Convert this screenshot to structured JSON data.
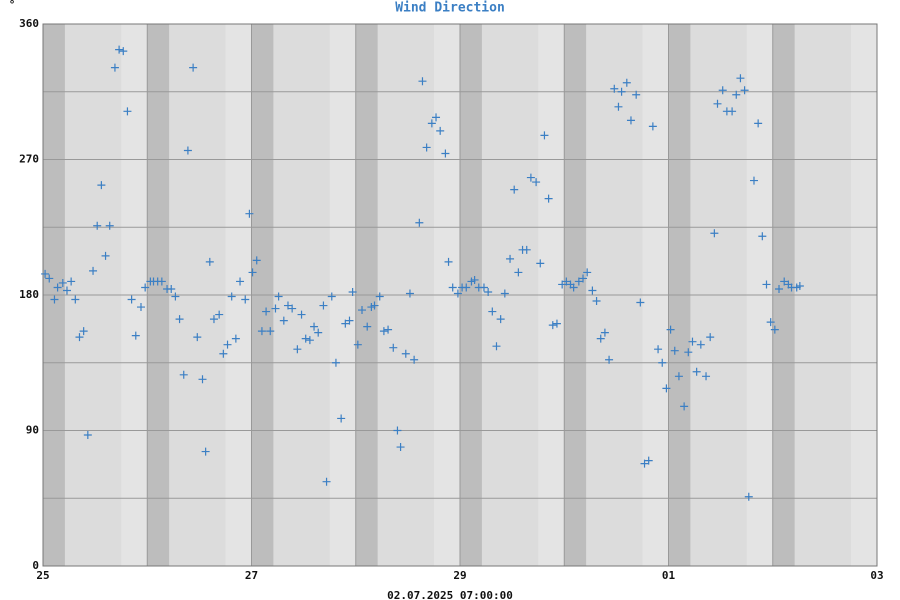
{
  "chart_data": {
    "type": "scatter",
    "title": "Wind Direction",
    "y_label": "°",
    "x_label": "02.07.2025 07:00:00",
    "color": "#3b7fc4",
    "xlim": [
      0,
      8
    ],
    "xticks": [
      {
        "value": 0,
        "label": "25"
      },
      {
        "value": 2,
        "label": "27"
      },
      {
        "value": 4,
        "label": "29"
      },
      {
        "value": 6,
        "label": "01"
      },
      {
        "value": 8,
        "label": "03"
      }
    ],
    "ylim": [
      0,
      360
    ],
    "yticks": [
      0,
      90,
      180,
      270,
      360
    ],
    "grid": true,
    "x": [
      0.02,
      0.06,
      0.11,
      0.14,
      0.19,
      0.23,
      0.27,
      0.31,
      0.35,
      0.39,
      0.43,
      0.48,
      0.52,
      0.56,
      0.6,
      0.64,
      0.69,
      0.73,
      0.77,
      0.81,
      0.85,
      0.89,
      0.94,
      0.98,
      1.03,
      1.06,
      1.1,
      1.14,
      1.19,
      1.23,
      1.27,
      1.31,
      1.35,
      1.39,
      1.44,
      1.48,
      1.53,
      1.56,
      1.6,
      1.64,
      1.69,
      1.73,
      1.77,
      1.81,
      1.85,
      1.89,
      1.94,
      1.98,
      2.01,
      2.05,
      2.1,
      2.14,
      2.18,
      2.23,
      2.26,
      2.31,
      2.35,
      2.39,
      2.44,
      2.48,
      2.52,
      2.56,
      2.6,
      2.64,
      2.69,
      2.72,
      2.77,
      2.81,
      2.86,
      2.9,
      2.94,
      2.97,
      3.02,
      3.06,
      3.11,
      3.15,
      3.18,
      3.23,
      3.27,
      3.31,
      3.36,
      3.4,
      3.43,
      3.48,
      3.52,
      3.56,
      3.61,
      3.64,
      3.68,
      3.73,
      3.77,
      3.81,
      3.86,
      3.89,
      3.93,
      3.98,
      4.02,
      4.06,
      4.11,
      4.14,
      4.18,
      4.23,
      4.27,
      4.31,
      4.35,
      4.39,
      4.43,
      4.48,
      4.52,
      4.56,
      4.6,
      4.64,
      4.68,
      4.73,
      4.77,
      4.81,
      4.85,
      4.89,
      4.93,
      4.98,
      5.02,
      5.06,
      5.09,
      5.14,
      5.18,
      5.22,
      5.27,
      5.31,
      5.35,
      5.39,
      5.43,
      5.48,
      5.52,
      5.55,
      5.6,
      5.64,
      5.69,
      5.73,
      5.77,
      5.81,
      5.85,
      5.9,
      5.94,
      5.98,
      6.02,
      6.06,
      6.1,
      6.15,
      6.19,
      6.23,
      6.27,
      6.31,
      6.36,
      6.4,
      6.44,
      6.47,
      6.52,
      6.56,
      6.61,
      6.65,
      6.69,
      6.73,
      6.77,
      6.82,
      6.86,
      6.9,
      6.94,
      6.98,
      7.02,
      7.06,
      7.11,
      7.15,
      7.18,
      7.23,
      7.26
    ],
    "values": [
      194,
      191,
      177,
      185,
      188,
      183,
      189,
      177,
      152,
      156,
      87,
      196,
      226,
      253,
      206,
      226,
      331,
      343,
      342,
      302,
      177,
      153,
      172,
      185,
      189,
      189,
      189,
      189,
      184,
      184,
      179,
      164,
      127,
      276,
      331,
      152,
      124,
      76,
      202,
      164,
      167,
      141,
      147,
      179,
      151,
      189,
      177,
      234,
      195,
      203,
      156,
      169,
      156,
      171,
      179,
      163,
      173,
      171,
      144,
      167,
      151,
      150,
      159,
      155,
      173,
      56,
      179,
      135,
      98,
      161,
      163,
      182,
      147,
      170,
      159,
      172,
      173,
      179,
      156,
      157,
      145,
      90,
      79,
      141,
      181,
      137,
      228,
      322,
      278,
      294,
      298,
      289,
      274,
      202,
      185,
      181,
      185,
      185,
      189,
      190,
      185,
      185,
      182,
      169,
      146,
      164,
      181,
      204,
      250,
      195,
      210,
      210,
      258,
      255,
      201,
      286,
      244,
      160,
      161,
      187,
      189,
      187,
      185,
      189,
      191,
      195,
      183,
      176,
      151,
      155,
      137,
      317,
      305,
      315,
      321,
      296,
      313,
      175,
      68,
      70,
      292,
      144,
      135,
      118,
      157,
      143,
      126,
      106,
      142,
      149,
      129,
      147,
      126,
      152,
      221,
      307,
      316,
      302,
      302,
      313,
      324,
      316,
      46,
      256,
      294,
      219,
      187,
      162,
      157,
      184,
      189,
      187,
      185,
      185,
      186
    ]
  }
}
